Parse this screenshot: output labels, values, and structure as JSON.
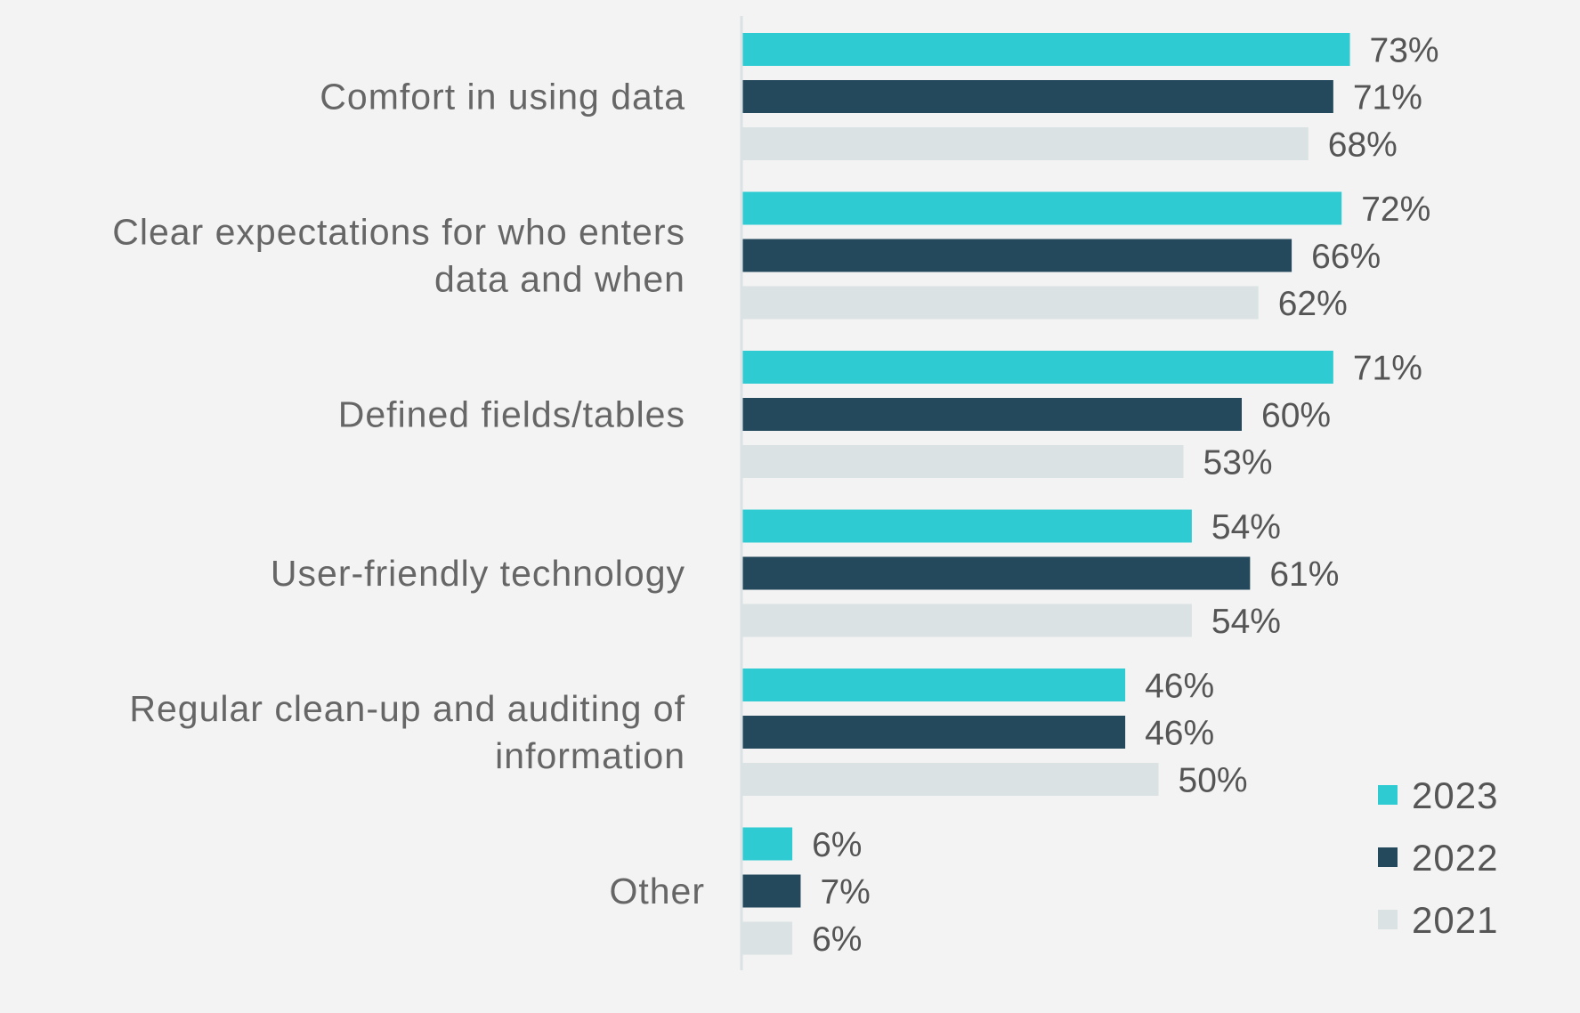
{
  "chart_data": {
    "type": "bar",
    "orientation": "horizontal",
    "title": "",
    "xlabel": "",
    "ylabel": "",
    "xlim": [
      0,
      73
    ],
    "grid": false,
    "legend_position": "bottom-right",
    "categories": [
      [
        "Comfort in using data"
      ],
      [
        "Clear expectations for who enters",
        "data and when"
      ],
      [
        "Defined fields/tables"
      ],
      [
        "User-friendly technology"
      ],
      [
        "Regular clean-up and auditing of",
        "information"
      ],
      [
        "Other"
      ]
    ],
    "series": [
      {
        "name": "2023",
        "color": "#2ecbd2",
        "values": [
          73,
          72,
          71,
          54,
          46,
          6
        ]
      },
      {
        "name": "2022",
        "color": "#24495c",
        "values": [
          71,
          66,
          60,
          61,
          46,
          7
        ]
      },
      {
        "name": "2021",
        "color": "#dbe2e3",
        "values": [
          68,
          62,
          53,
          54,
          50,
          6
        ]
      }
    ],
    "value_suffix": "%",
    "axis_color": "#dbe2e3"
  }
}
